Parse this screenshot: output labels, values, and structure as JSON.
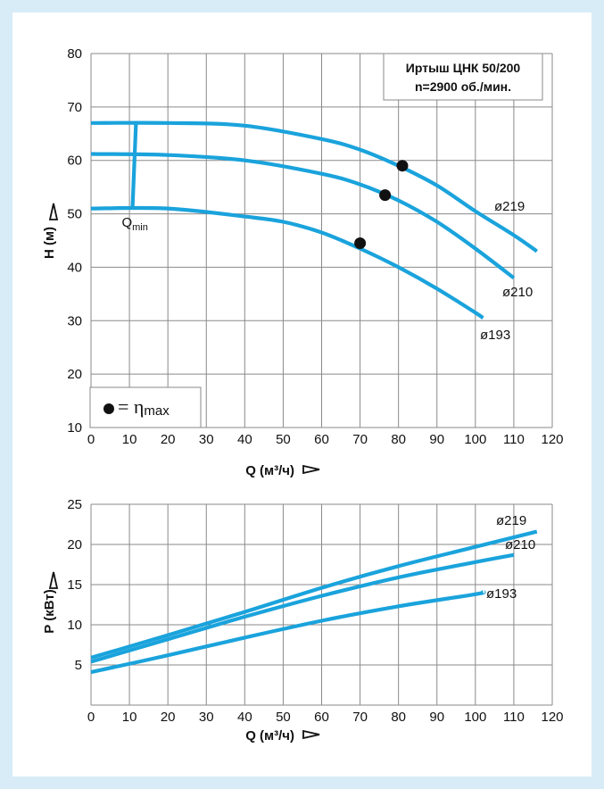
{
  "chart_data": [
    {
      "type": "line",
      "xlabel": "Q (м³/ч)",
      "ylabel": "H (м)",
      "xlim": [
        0,
        120
      ],
      "ylim": [
        10,
        80
      ],
      "x_ticks": [
        "0",
        "10",
        "20",
        "30",
        "40",
        "50",
        "60",
        "70",
        "80",
        "90",
        "100",
        "110",
        "120"
      ],
      "y_ticks": [
        "10",
        "20",
        "30",
        "40",
        "50",
        "60",
        "70",
        "80"
      ],
      "grid": true,
      "title_box": [
        "Иртыш ЦНК 50/200",
        "n=2900 об./мин."
      ],
      "legend": {
        "marker_label": "= η",
        "marker_sub": "max",
        "position": "bottom-left"
      },
      "qmin": {
        "label": "Q",
        "sub": "min",
        "x": 12
      },
      "series": [
        {
          "name": "ø219",
          "x": [
            0,
            20,
            40,
            60,
            70,
            80,
            90,
            100,
            110,
            116
          ],
          "y": [
            67,
            67,
            66.5,
            64,
            62,
            59,
            55.3,
            50.5,
            46,
            43
          ],
          "bep": [
            81,
            59
          ]
        },
        {
          "name": "ø210",
          "x": [
            0,
            20,
            40,
            60,
            70,
            80,
            90,
            100,
            110
          ],
          "y": [
            61.2,
            61,
            60,
            57.5,
            55.5,
            52.5,
            48.5,
            43.5,
            38
          ],
          "bep": [
            76.5,
            53.5
          ]
        },
        {
          "name": "ø193",
          "x": [
            0,
            20,
            40,
            50,
            60,
            70,
            80,
            90,
            100,
            102
          ],
          "y": [
            51,
            51,
            49.5,
            48.5,
            46.5,
            43.5,
            40,
            36,
            31.5,
            30.5
          ],
          "bep": [
            70,
            44.5
          ]
        }
      ]
    },
    {
      "type": "line",
      "xlabel": "Q (м³/ч)",
      "ylabel": "P (кВт)",
      "xlim": [
        0,
        120
      ],
      "ylim": [
        0,
        25
      ],
      "x_ticks": [
        "0",
        "10",
        "20",
        "30",
        "40",
        "50",
        "60",
        "70",
        "80",
        "90",
        "100",
        "110",
        "120"
      ],
      "y_ticks": [
        "5",
        "10",
        "15",
        "20",
        "25"
      ],
      "grid": true,
      "series": [
        {
          "name": "ø219",
          "x": [
            0,
            20,
            40,
            60,
            80,
            100,
            116
          ],
          "y": [
            5.9,
            8.7,
            11.6,
            14.6,
            17.3,
            19.7,
            21.6
          ]
        },
        {
          "name": "ø210",
          "x": [
            0,
            20,
            40,
            60,
            80,
            100,
            110
          ],
          "y": [
            5.4,
            8.2,
            11,
            13.6,
            15.9,
            17.8,
            18.7
          ]
        },
        {
          "name": "ø193",
          "x": [
            0,
            20,
            40,
            60,
            80,
            100,
            102
          ],
          "y": [
            4.1,
            6.2,
            8.4,
            10.5,
            12.3,
            13.8,
            14.1
          ]
        }
      ]
    }
  ],
  "colors": {
    "curve": "#1aa3dc",
    "grid": "#8a8a8a",
    "frame": "#d7ecf7",
    "marker": "#111111"
  }
}
